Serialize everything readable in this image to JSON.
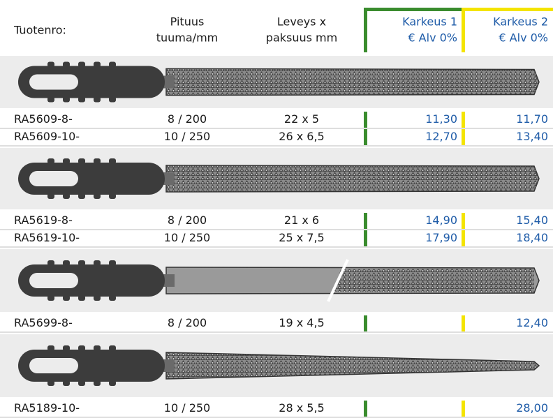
{
  "table": {
    "header": {
      "code": "Tuotenro:",
      "length": [
        "Pituus",
        "tuuma/mm"
      ],
      "size": [
        "Leveys x",
        "paksuus mm"
      ],
      "k1": [
        "Karkeus 1",
        "€ Alv 0%"
      ],
      "k2": [
        "Karkeus 2",
        "€ Alv 0%"
      ]
    },
    "groups": [
      {
        "rows": [
          {
            "code": "RA5609-8-",
            "length": "8 / 200",
            "size": "22 x 5",
            "k1": "11,30",
            "k2": "11,70"
          },
          {
            "code": "RA5609-10-",
            "length": "10 / 250",
            "size": "26 x 6,5",
            "k1": "12,70",
            "k2": "13,40"
          }
        ]
      },
      {
        "rows": [
          {
            "code": "RA5619-8-",
            "length": "8 / 200",
            "size": "21 x 6",
            "k1": "14,90",
            "k2": "15,40"
          },
          {
            "code": "RA5619-10-",
            "length": "10 / 250",
            "size": "25 x 7,5",
            "k1": "17,90",
            "k2": "18,40"
          }
        ]
      },
      {
        "rows": [
          {
            "code": "RA5699-8-",
            "length": "8 / 200",
            "size": "19 x 4,5",
            "k2": "12,40"
          }
        ]
      },
      {
        "rows": [
          {
            "code": "RA5189-10-",
            "length": "10 / 250",
            "size": "28 x 5,5",
            "k2": "28,00"
          }
        ]
      }
    ]
  }
}
